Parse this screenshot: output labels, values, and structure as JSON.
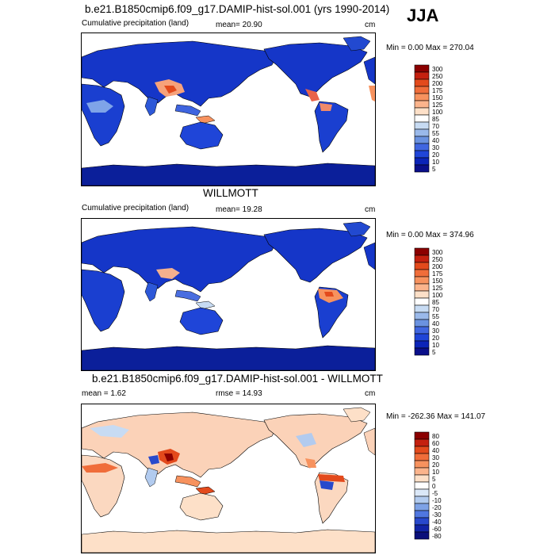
{
  "season": "JJA",
  "panels": [
    {
      "title": "b.e21.B1850cmip6.f09_g17.DAMIP-hist-sol.001 (yrs 1990-2014)",
      "left_label": "Cumulative precipitation (land)",
      "center_label": "mean=  20.90",
      "units": "cm",
      "minmax": "Min =   0.00 Max = 270.04",
      "scheme": "abs",
      "levels": [
        "300",
        "250",
        "200",
        "175",
        "150",
        "125",
        "100",
        "85",
        "70",
        "55",
        "40",
        "30",
        "20",
        "10",
        "5"
      ]
    },
    {
      "title": "WILLMOTT",
      "left_label": "Cumulative precipitation (land)",
      "center_label": "mean=  19.28",
      "units": "cm",
      "minmax": "Min =   0.00 Max = 374.96",
      "scheme": "abs",
      "levels": [
        "300",
        "250",
        "200",
        "175",
        "150",
        "125",
        "100",
        "85",
        "70",
        "55",
        "40",
        "30",
        "20",
        "10",
        "5"
      ]
    },
    {
      "title": "b.e21.B1850cmip6.f09_g17.DAMIP-hist-sol.001 - WILLMOTT",
      "left_label": "mean =   1.62",
      "center_label": "rmse =  14.93",
      "units": "cm",
      "minmax": "Min = -262.36 Max = 141.07",
      "scheme": "diff",
      "levels": [
        "80",
        "60",
        "40",
        "30",
        "20",
        "10",
        "5",
        "0",
        "-5",
        "-10",
        "-20",
        "-30",
        "-40",
        "-60",
        "-80"
      ]
    }
  ],
  "colors": {
    "abs": [
      "#8b0000",
      "#c4200f",
      "#e34a1c",
      "#f06d3a",
      "#f7925e",
      "#fbb48c",
      "#fde0c8",
      "#ffffff",
      "#c7dbf3",
      "#9ab9ea",
      "#6a92e0",
      "#4066e0",
      "#1f45d8",
      "#0b24b8",
      "#0a0f8a"
    ],
    "diff": [
      "#8b0000",
      "#c4200f",
      "#e34a1c",
      "#f06d3a",
      "#f7925e",
      "#fbb48c",
      "#fde0c8",
      "#ffffff",
      "#dbe8f8",
      "#b2cbef",
      "#7ea2e6",
      "#5077e0",
      "#2849cc",
      "#1124a6",
      "#0a0f7a"
    ]
  }
}
